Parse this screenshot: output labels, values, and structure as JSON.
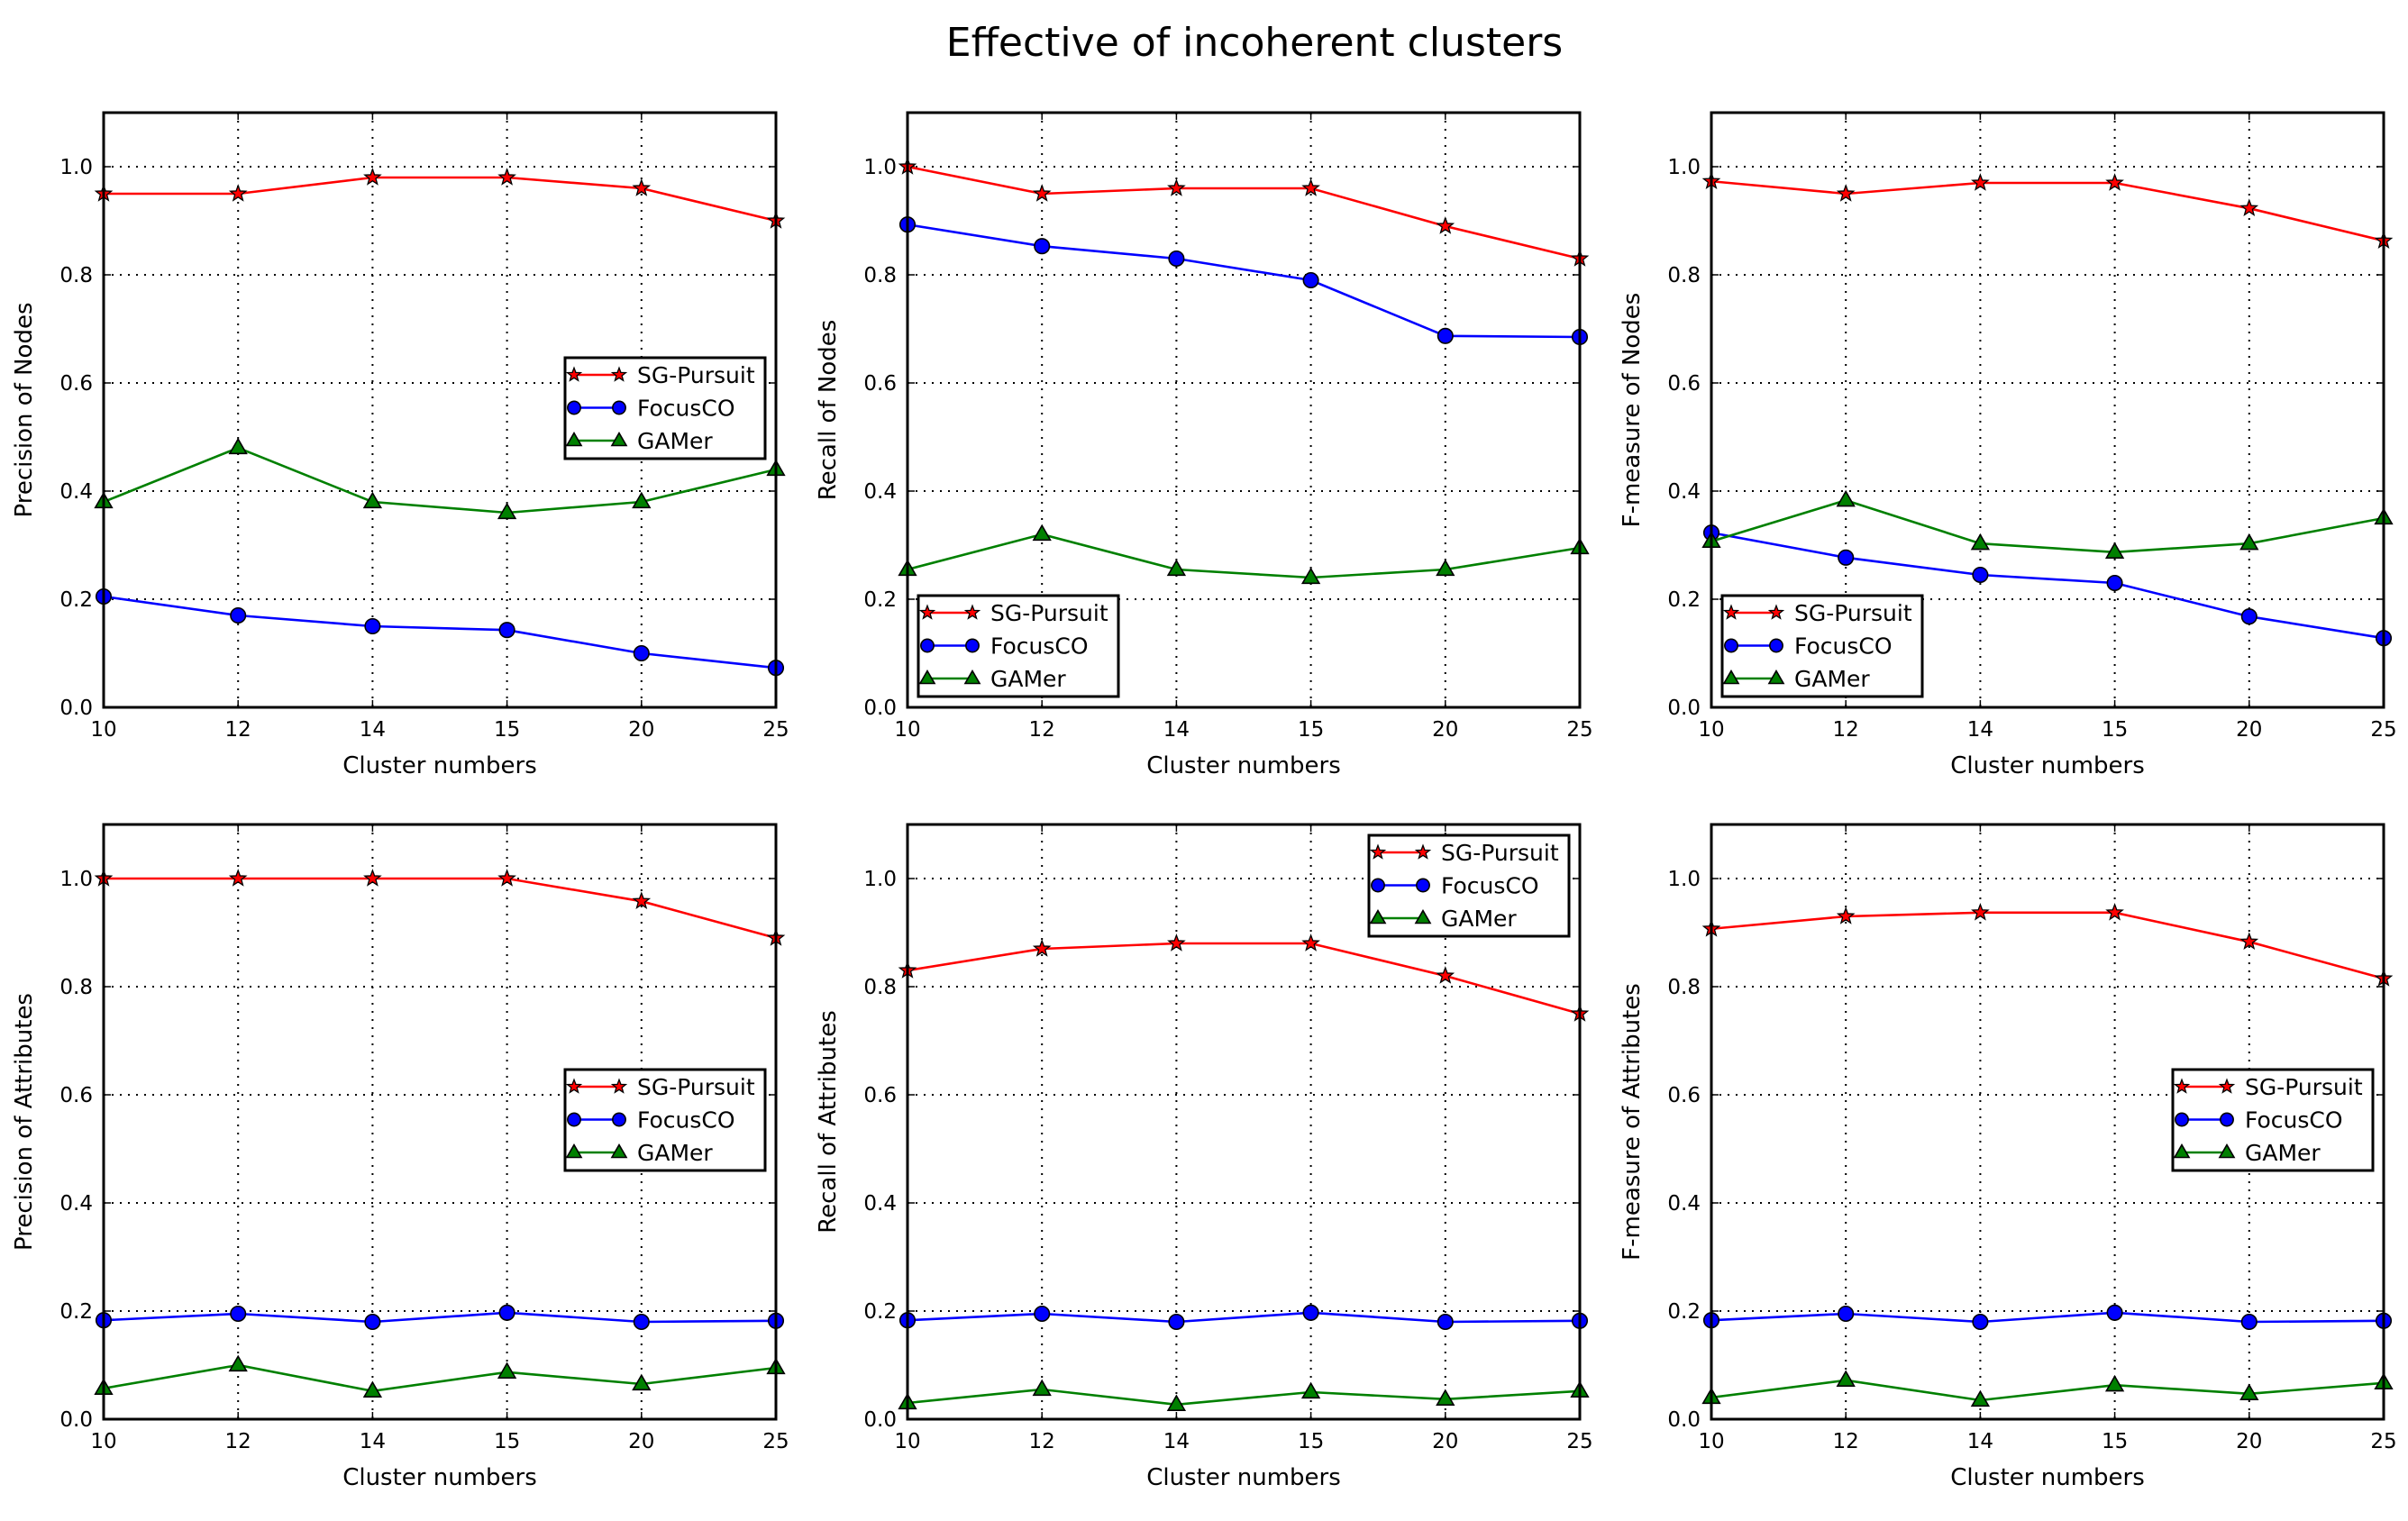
{
  "figure": {
    "title": "Effective of incoherent clusters"
  },
  "colors": {
    "SG-Pursuit": "#ff0000",
    "FocusCO": "#0000ff",
    "GAMer": "#008000",
    "grid": "#000000",
    "background": "#ffffff"
  },
  "chart_data": [
    {
      "type": "line",
      "xlabel": "Cluster numbers",
      "ylabel": "Precision of Nodes",
      "categories": [
        "10",
        "12",
        "14",
        "15",
        "20",
        "25"
      ],
      "ylim": [
        0.0,
        1.1
      ],
      "yticks": [
        "0.0",
        "0.2",
        "0.4",
        "0.6",
        "0.8",
        "1.0"
      ],
      "grid": true,
      "legend_position": "center-right",
      "series": [
        {
          "name": "SG-Pursuit",
          "marker": "star",
          "values": [
            0.95,
            0.95,
            0.98,
            0.98,
            0.96,
            0.9
          ]
        },
        {
          "name": "FocusCO",
          "marker": "circle",
          "values": [
            0.205,
            0.17,
            0.15,
            0.143,
            0.1,
            0.073
          ]
        },
        {
          "name": "GAMer",
          "marker": "triangle",
          "values": [
            0.38,
            0.48,
            0.38,
            0.36,
            0.38,
            0.44
          ]
        }
      ]
    },
    {
      "type": "line",
      "xlabel": "Cluster numbers",
      "ylabel": "Recall of Nodes",
      "categories": [
        "10",
        "12",
        "14",
        "15",
        "20",
        "25"
      ],
      "ylim": [
        0.0,
        1.1
      ],
      "yticks": [
        "0.0",
        "0.2",
        "0.4",
        "0.6",
        "0.8",
        "1.0"
      ],
      "grid": true,
      "legend_position": "lower-left",
      "series": [
        {
          "name": "SG-Pursuit",
          "marker": "star",
          "values": [
            1.0,
            0.95,
            0.96,
            0.96,
            0.89,
            0.83
          ]
        },
        {
          "name": "FocusCO",
          "marker": "circle",
          "values": [
            0.893,
            0.853,
            0.83,
            0.79,
            0.687,
            0.685
          ]
        },
        {
          "name": "GAMer",
          "marker": "triangle",
          "values": [
            0.255,
            0.32,
            0.255,
            0.24,
            0.255,
            0.295
          ]
        }
      ]
    },
    {
      "type": "line",
      "xlabel": "Cluster numbers",
      "ylabel": "F-measure of Nodes",
      "categories": [
        "10",
        "12",
        "14",
        "15",
        "20",
        "25"
      ],
      "ylim": [
        0.0,
        1.1
      ],
      "yticks": [
        "0.0",
        "0.2",
        "0.4",
        "0.6",
        "0.8",
        "1.0"
      ],
      "grid": true,
      "legend_position": "lower-left",
      "series": [
        {
          "name": "SG-Pursuit",
          "marker": "star",
          "values": [
            0.973,
            0.95,
            0.97,
            0.97,
            0.923,
            0.863
          ]
        },
        {
          "name": "FocusCO",
          "marker": "circle",
          "values": [
            0.323,
            0.277,
            0.245,
            0.23,
            0.168,
            0.128
          ]
        },
        {
          "name": "GAMer",
          "marker": "triangle",
          "values": [
            0.307,
            0.383,
            0.303,
            0.287,
            0.303,
            0.35
          ]
        }
      ]
    },
    {
      "type": "line",
      "xlabel": "Cluster numbers",
      "ylabel": "Precision of Attributes",
      "categories": [
        "10",
        "12",
        "14",
        "15",
        "20",
        "25"
      ],
      "ylim": [
        0.0,
        1.1
      ],
      "yticks": [
        "0.0",
        "0.2",
        "0.4",
        "0.6",
        "0.8",
        "1.0"
      ],
      "grid": true,
      "legend_position": "center-right",
      "series": [
        {
          "name": "SG-Pursuit",
          "marker": "star",
          "values": [
            1.0,
            1.0,
            1.0,
            1.0,
            0.958,
            0.89
          ]
        },
        {
          "name": "FocusCO",
          "marker": "circle",
          "values": [
            0.183,
            0.195,
            0.18,
            0.197,
            0.18,
            0.182
          ]
        },
        {
          "name": "GAMer",
          "marker": "triangle",
          "values": [
            0.057,
            0.1,
            0.052,
            0.087,
            0.065,
            0.095
          ]
        }
      ]
    },
    {
      "type": "line",
      "xlabel": "Cluster numbers",
      "ylabel": "Recall of Attributes",
      "categories": [
        "10",
        "12",
        "14",
        "15",
        "20",
        "25"
      ],
      "ylim": [
        0.0,
        1.1
      ],
      "yticks": [
        "0.0",
        "0.2",
        "0.4",
        "0.6",
        "0.8",
        "1.0"
      ],
      "grid": true,
      "legend_position": "upper-right",
      "series": [
        {
          "name": "SG-Pursuit",
          "marker": "star",
          "values": [
            0.83,
            0.87,
            0.88,
            0.88,
            0.82,
            0.75
          ]
        },
        {
          "name": "FocusCO",
          "marker": "circle",
          "values": [
            0.183,
            0.195,
            0.18,
            0.197,
            0.18,
            0.182
          ]
        },
        {
          "name": "GAMer",
          "marker": "triangle",
          "values": [
            0.03,
            0.055,
            0.027,
            0.05,
            0.037,
            0.052
          ]
        }
      ]
    },
    {
      "type": "line",
      "xlabel": "Cluster numbers",
      "ylabel": "F-measure of Attributes",
      "categories": [
        "10",
        "12",
        "14",
        "15",
        "20",
        "25"
      ],
      "ylim": [
        0.0,
        1.1
      ],
      "yticks": [
        "0.0",
        "0.2",
        "0.4",
        "0.6",
        "0.8",
        "1.0"
      ],
      "grid": true,
      "legend_position": "center-right",
      "series": [
        {
          "name": "SG-Pursuit",
          "marker": "star",
          "values": [
            0.907,
            0.93,
            0.937,
            0.937,
            0.883,
            0.815
          ]
        },
        {
          "name": "FocusCO",
          "marker": "circle",
          "values": [
            0.183,
            0.195,
            0.18,
            0.197,
            0.18,
            0.182
          ]
        },
        {
          "name": "GAMer",
          "marker": "triangle",
          "values": [
            0.04,
            0.072,
            0.035,
            0.063,
            0.047,
            0.067
          ]
        }
      ]
    }
  ]
}
